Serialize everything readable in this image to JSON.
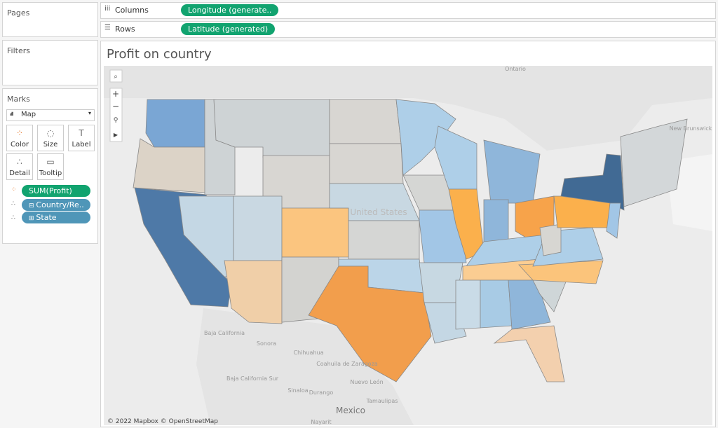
{
  "panels": {
    "pages": "Pages",
    "filters": "Filters",
    "marks": "Marks"
  },
  "shelves": {
    "columns": {
      "label": "Columns",
      "pill": "Longitude (generate.."
    },
    "rows": {
      "label": "Rows",
      "pill": "Latitude (generated)"
    }
  },
  "marks_card": {
    "mark_type": "Map",
    "buttons": [
      "Color",
      "Size",
      "Label",
      "Detail",
      "Tooltip"
    ],
    "fields": [
      "SUM(Profit)",
      "Country/Re..",
      "State"
    ]
  },
  "view": {
    "title": "Profit on country",
    "attribution": "© 2022 Mapbox © OpenStreetMap",
    "map_labels": [
      "Ontario",
      "New Brunswick",
      "United States",
      "Baja California",
      "Sonora",
      "Chihuahua",
      "Baja California Sur",
      "Sinaloa",
      "Durango",
      "Coahuila de Zaragoza",
      "Nuevo León",
      "Tamaulipas",
      "Mexico",
      "Nayarit"
    ]
  }
}
